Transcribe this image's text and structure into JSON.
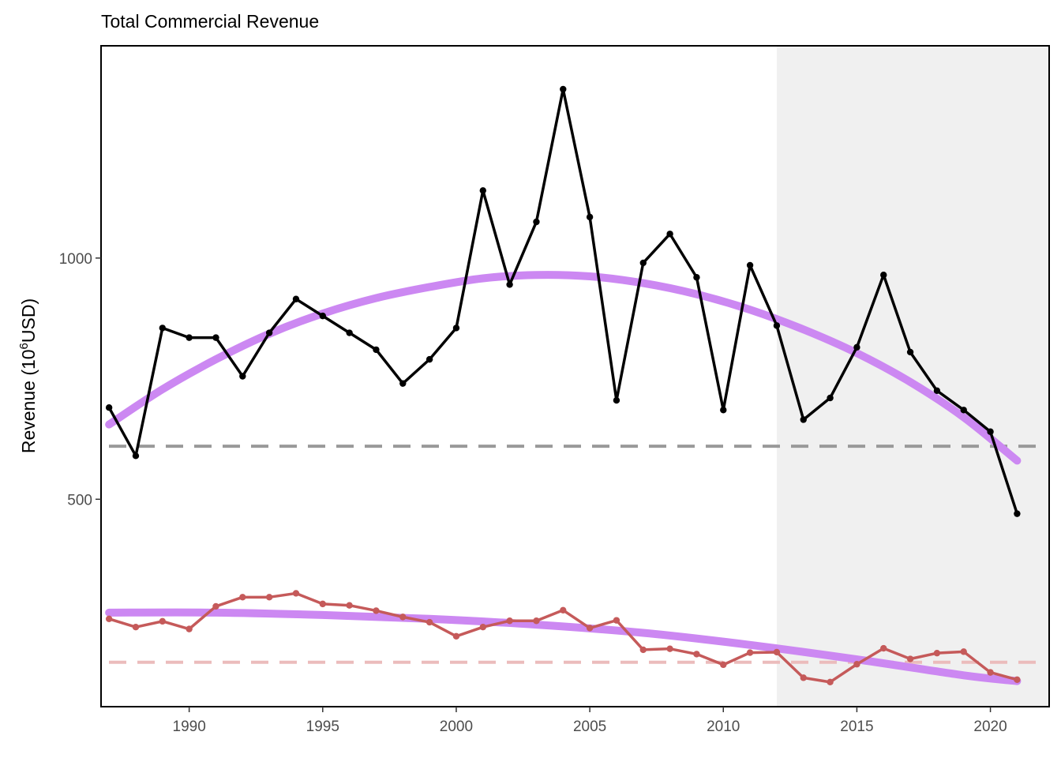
{
  "chart_data": {
    "type": "line",
    "title": "Total Commercial Revenue",
    "ylabel": "Revenue (10^6USD)",
    "ylabel_parts": {
      "prefix": "Revenue (10",
      "superscript": "6",
      "suffix": "USD)"
    },
    "xlabel": "",
    "xlim": [
      1986.7,
      2022.2
    ],
    "ylim": [
      70,
      1440
    ],
    "x_ticks": [
      1990,
      1995,
      2000,
      2005,
      2010,
      2015,
      2020
    ],
    "x_tick_labels": [
      "1990",
      "1995",
      "2000",
      "2005",
      "2010",
      "2015",
      "2020"
    ],
    "y_ticks": [
      500,
      1000
    ],
    "y_tick_labels": [
      "500",
      "1000"
    ],
    "grid": false,
    "shaded_region": {
      "x_start": 2012,
      "x_end": 2022.2,
      "color": "#f0f0f0"
    },
    "series": [
      {
        "color": "#000000",
        "x": [
          1987,
          1988,
          1989,
          1990,
          1991,
          1992,
          1993,
          1994,
          1995,
          1996,
          1997,
          1998,
          1999,
          2000,
          2001,
          2002,
          2003,
          2004,
          2005,
          2006,
          2007,
          2008,
          2009,
          2010,
          2011,
          2012,
          2013,
          2014,
          2015,
          2016,
          2017,
          2018,
          2019,
          2020,
          2021
        ],
        "values": [
          690,
          590,
          855,
          835,
          835,
          755,
          845,
          915,
          880,
          845,
          810,
          740,
          790,
          855,
          1140,
          945,
          1075,
          1350,
          1085,
          705,
          990,
          1050,
          960,
          685,
          985,
          860,
          665,
          710,
          815,
          965,
          805,
          725,
          685,
          640,
          470
        ],
        "mean": 610,
        "mean_color": "#999999",
        "trend": {
          "x": [
            1987,
            1989,
            1991,
            1993,
            1995,
            1997,
            1999,
            2001,
            2003,
            2005,
            2007,
            2009,
            2011,
            2013,
            2015,
            2017,
            2019,
            2021
          ],
          "values": [
            655,
            728,
            790,
            843,
            885,
            917,
            940,
            958,
            965,
            962,
            948,
            925,
            893,
            852,
            803,
            743,
            670,
            580
          ]
        }
      },
      {
        "color": "#c55a5a",
        "x": [
          1987,
          1988,
          1989,
          1990,
          1991,
          1992,
          1993,
          1994,
          1995,
          1996,
          1997,
          1998,
          1999,
          2000,
          2001,
          2002,
          2003,
          2004,
          2005,
          2006,
          2007,
          2008,
          2009,
          2010,
          2011,
          2012,
          2013,
          2014,
          2015,
          2016,
          2017,
          2018,
          2019,
          2020,
          2021
        ],
        "values": [
          252,
          235,
          247,
          231,
          278,
          297,
          297,
          305,
          283,
          280,
          269,
          256,
          245,
          216,
          235,
          248,
          248,
          270,
          233,
          249,
          188,
          190,
          179,
          157,
          182,
          183,
          130,
          121,
          158,
          191,
          169,
          181,
          184,
          141,
          126
        ],
        "mean": 162,
        "mean_color": "#ebbcbc",
        "trend": {
          "x": [
            1987,
            1991,
            1995,
            1999,
            2003,
            2007,
            2011,
            2015,
            2019,
            2021
          ],
          "values": [
            265,
            265,
            260,
            252,
            240,
            223,
            198,
            168,
            135,
            123
          ]
        }
      }
    ],
    "trend_color": "#cc88f2"
  }
}
